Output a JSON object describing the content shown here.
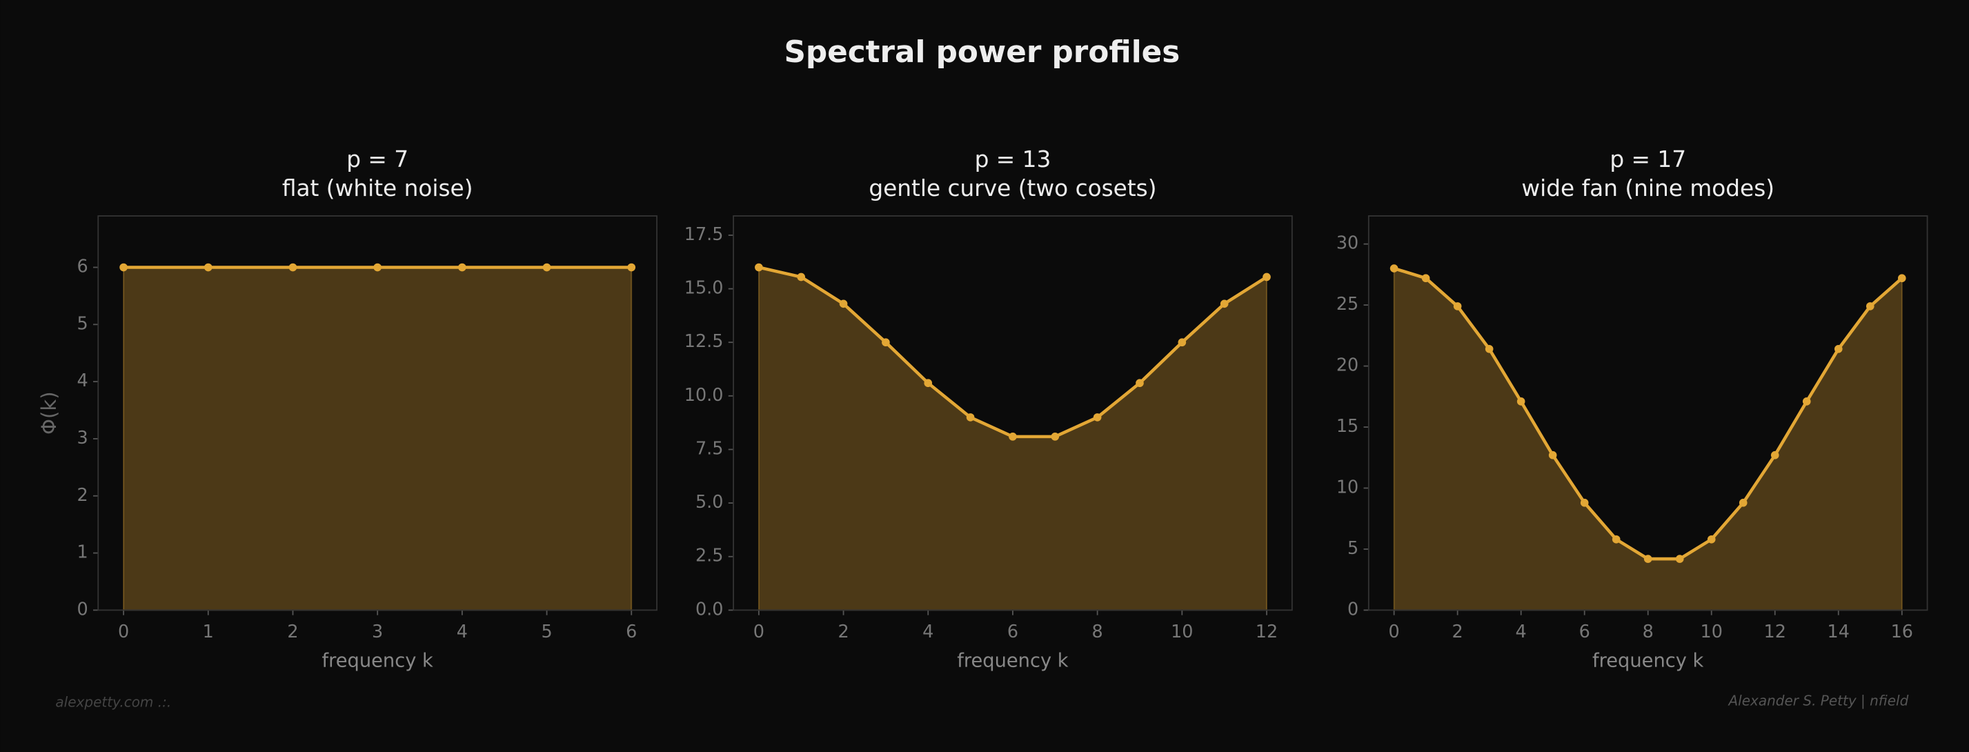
{
  "title": "Spectral power profiles",
  "footer_left": "alexpetty.com  .:.",
  "footer_right": "Alexander S. Petty  |  nfield",
  "chart_data": [
    {
      "type": "area",
      "title": "p = 7",
      "subtitle": "flat (white noise)",
      "xlabel": "frequency k",
      "ylabel": "Φ(k)",
      "color": "#e3a735",
      "x": [
        0,
        1,
        2,
        3,
        4,
        5,
        6
      ],
      "values": [
        6,
        6,
        6,
        6,
        6,
        6,
        6
      ],
      "xlim": [
        -0.3,
        6.3
      ],
      "ylim": [
        0,
        6.9
      ],
      "xticks": [
        0,
        1,
        2,
        3,
        4,
        5,
        6
      ],
      "yticks": [
        0,
        1,
        2,
        3,
        4,
        5,
        6
      ]
    },
    {
      "type": "area",
      "title": "p = 13",
      "subtitle": "gentle curve (two cosets)",
      "xlabel": "frequency k",
      "color": "#e3a735",
      "x": [
        0,
        1,
        2,
        3,
        4,
        5,
        6,
        7,
        8,
        9,
        10,
        11,
        12
      ],
      "values": [
        16,
        15.55,
        14.3,
        12.5,
        10.6,
        9.0,
        8.1,
        8.1,
        9.0,
        10.6,
        12.5,
        14.3,
        15.55
      ],
      "xlim": [
        -0.6,
        12.6
      ],
      "ylim": [
        0,
        18.4
      ],
      "xticks": [
        0,
        2,
        4,
        6,
        8,
        10,
        12
      ],
      "yticks": [
        {
          "value": 0,
          "label": "0.0"
        },
        2.5,
        {
          "value": 5,
          "label": "5.0"
        },
        7.5,
        {
          "value": 10,
          "label": "10.0"
        },
        12.5,
        {
          "value": 15,
          "label": "15.0"
        },
        17.5
      ]
    },
    {
      "type": "area",
      "title": "p = 17",
      "subtitle": "wide fan (nine modes)",
      "xlabel": "frequency k",
      "color": "#e3a735",
      "x": [
        0,
        1,
        2,
        3,
        4,
        5,
        6,
        7,
        8,
        9,
        10,
        11,
        12,
        13,
        14,
        15,
        16
      ],
      "values": [
        28,
        27.2,
        24.9,
        21.4,
        17.1,
        12.7,
        8.8,
        5.8,
        4.2,
        4.2,
        5.8,
        8.8,
        12.7,
        17.1,
        21.4,
        24.9,
        27.2
      ],
      "xlim": [
        -0.8,
        16.8
      ],
      "ylim": [
        0,
        32.3
      ],
      "xticks": [
        0,
        2,
        4,
        6,
        8,
        10,
        12,
        14,
        16
      ],
      "yticks": [
        0,
        5,
        10,
        15,
        20,
        25,
        30
      ]
    }
  ]
}
